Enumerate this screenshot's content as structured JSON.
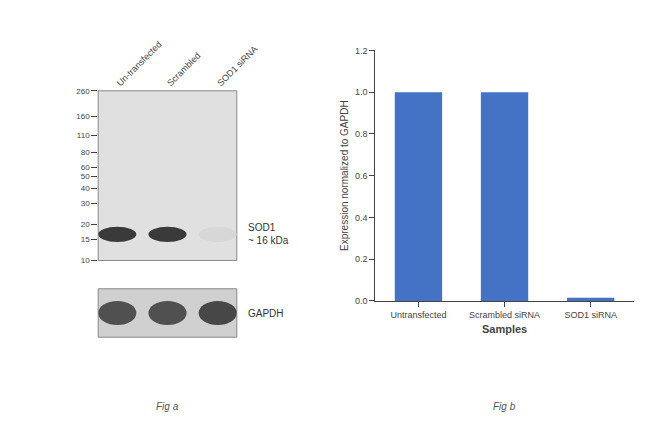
{
  "chart_data": [
    {
      "type": "blot",
      "categories": [
        "Un-transfected",
        "Scrambled",
        "SOD1 siRNA"
      ],
      "log": "y",
      "ylim": [
        10,
        260
      ],
      "yticks": [
        260,
        160,
        110,
        80,
        60,
        50,
        40,
        30,
        20,
        15,
        10
      ],
      "grid": false,
      "series": [
        {
          "name": "SOD1\n~ 16 kDa",
          "color": "#e0e0e0",
          "colors": [
            "#3a3a3a",
            "#3a3a3a",
            "#d7d7d7"
          ]
        },
        {
          "name": "GAPDH",
          "color": "#d0d0d0",
          "colors": [
            "#505050",
            "#505050",
            "#474747"
          ]
        }
      ],
      "annotations": [
        "Fig a"
      ]
    },
    {
      "type": "bar",
      "categories": [
        "Untransfected",
        "Scrambled siRNA",
        "SOD1 siRNA"
      ],
      "values": [
        1.0,
        1.0,
        0.015
      ],
      "color": "#4472C4",
      "ylim": [
        0,
        1.2
      ],
      "yticks": [
        {
          "value": 0,
          "label": "0.0"
        },
        0.2,
        0.4,
        0.6,
        0.8,
        {
          "value": 1,
          "label": "1.0"
        },
        1.2
      ],
      "ylabel": "Expression normalized to GAPDH",
      "xlabel": "Samples",
      "grid": false,
      "annotations": [
        "Fig b"
      ]
    }
  ]
}
